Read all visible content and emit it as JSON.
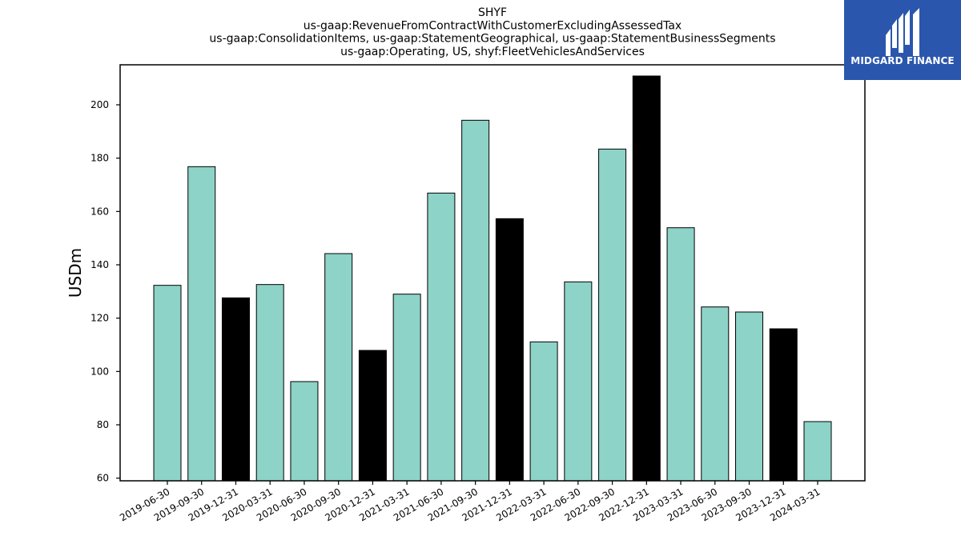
{
  "chart_data": {
    "type": "bar",
    "title": [
      "SHYF",
      "us-gaap:RevenueFromContractWithCustomerExcludingAssessedTax",
      "us-gaap:ConsolidationItems, us-gaap:StatementGeographical, us-gaap:StatementBusinessSegments",
      "us-gaap:Operating, US, shyf:FleetVehiclesAndServices"
    ],
    "ylabel": "USDm",
    "xlabel": "",
    "ylim": [
      59,
      215
    ],
    "yticks": [
      60,
      80,
      100,
      120,
      140,
      160,
      180,
      200
    ],
    "categories": [
      "2019-06-30",
      "2019-09-30",
      "2019-12-31",
      "2020-03-31",
      "2020-06-30",
      "2020-09-30",
      "2020-12-31",
      "2021-03-31",
      "2021-06-30",
      "2021-09-30",
      "2021-12-31",
      "2022-03-31",
      "2022-06-30",
      "2022-09-30",
      "2022-12-31",
      "2023-03-31",
      "2023-06-30",
      "2023-09-30",
      "2023-12-31",
      "2024-03-31"
    ],
    "values": [
      132.3,
      176.8,
      127.6,
      132.6,
      96.2,
      144.2,
      107.9,
      129.0,
      166.9,
      194.2,
      157.3,
      111.1,
      133.6,
      183.4,
      210.8,
      153.9,
      124.2,
      122.3,
      116.0,
      81.2
    ],
    "bar_colors": [
      "#8dd3c7",
      "#8dd3c7",
      "#000000",
      "#8dd3c7",
      "#8dd3c7",
      "#8dd3c7",
      "#000000",
      "#8dd3c7",
      "#8dd3c7",
      "#8dd3c7",
      "#000000",
      "#8dd3c7",
      "#8dd3c7",
      "#8dd3c7",
      "#000000",
      "#8dd3c7",
      "#8dd3c7",
      "#8dd3c7",
      "#000000",
      "#8dd3c7"
    ],
    "grid": false,
    "legend": "none"
  },
  "logo": {
    "text": "MIDGARD FINANCE",
    "color": "#2a56ad"
  }
}
